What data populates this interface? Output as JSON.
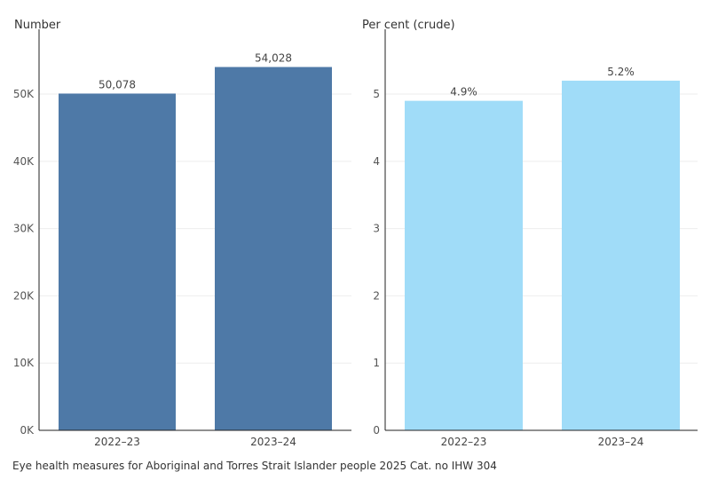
{
  "footer": "Eye health measures for Aboriginal and Torres Strait Islander people 2025 Cat. no IHW 304",
  "chart_data": [
    {
      "type": "bar",
      "ylabel": "Number",
      "categories": [
        "2022–23",
        "2023–24"
      ],
      "values": [
        50078,
        54028
      ],
      "data_labels": [
        "50,078",
        "54,028"
      ],
      "ylim": [
        0,
        57000
      ],
      "yticks": [
        0,
        10000,
        20000,
        30000,
        40000,
        50000
      ],
      "ytick_labels": [
        "0K",
        "10K",
        "20K",
        "30K",
        "40K",
        "50K"
      ],
      "grid": true,
      "color": "#4e79a7"
    },
    {
      "type": "bar",
      "ylabel": "Per cent (crude)",
      "categories": [
        "2022–23",
        "2023–24"
      ],
      "values": [
        4.9,
        5.2
      ],
      "data_labels": [
        "4.9%",
        "5.2%"
      ],
      "ylim": [
        0,
        5.7
      ],
      "yticks": [
        0,
        1,
        2,
        3,
        4,
        5
      ],
      "ytick_labels": [
        "0",
        "1",
        "2",
        "3",
        "4",
        "5"
      ],
      "grid": true,
      "color": "#a0dcf8"
    }
  ]
}
